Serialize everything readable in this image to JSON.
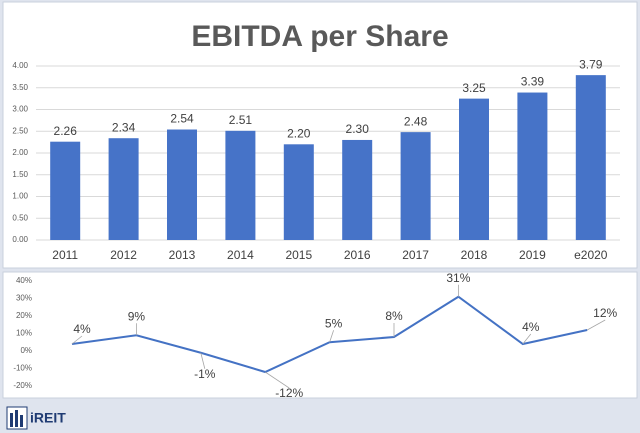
{
  "chart_data": [
    {
      "type": "bar",
      "title": "EBITDA per Share",
      "categories": [
        "2011",
        "2012",
        "2013",
        "2014",
        "2015",
        "2016",
        "2017",
        "2018",
        "2019",
        "e2020"
      ],
      "values": [
        2.26,
        2.34,
        2.54,
        2.51,
        2.2,
        2.3,
        2.48,
        3.25,
        3.39,
        3.79
      ],
      "value_labels": [
        "2.26",
        "2.34",
        "2.54",
        "2.51",
        "2.20",
        "2.30",
        "2.48",
        "3.25",
        "3.39",
        "3.79"
      ],
      "color": "#4673c8",
      "ylim": [
        0,
        4
      ],
      "yticks": [
        {
          "value": 0,
          "label": "0.00"
        },
        {
          "value": 0.5,
          "label": "0.50"
        },
        {
          "value": 1,
          "label": "1.00"
        },
        {
          "value": 1.5,
          "label": "1.50"
        },
        {
          "value": 2,
          "label": "2.00"
        },
        {
          "value": 2.5,
          "label": "2.50"
        },
        {
          "value": 3,
          "label": "3.00"
        },
        {
          "value": 3.5,
          "label": "3.50"
        },
        {
          "value": 4,
          "label": "4.00"
        }
      ]
    },
    {
      "type": "line",
      "values": [
        4,
        9,
        -1,
        -12,
        5,
        8,
        31,
        4,
        12
      ],
      "value_labels": [
        "4%",
        "9%",
        "-1%",
        "-12%",
        "5%",
        "8%",
        "31%",
        "4%",
        "12%"
      ],
      "color": "#4472c4",
      "ylim": [
        -20,
        40
      ],
      "yticks": [
        {
          "value": -20,
          "label": "-20%"
        },
        {
          "value": -10,
          "label": "-10%"
        },
        {
          "value": 0,
          "label": "0%"
        },
        {
          "value": 10,
          "label": "10%"
        },
        {
          "value": 20,
          "label": "20%"
        },
        {
          "value": 30,
          "label": "30%"
        },
        {
          "value": 40,
          "label": "40%"
        }
      ]
    }
  ],
  "logo": {
    "text": "iREIT"
  }
}
